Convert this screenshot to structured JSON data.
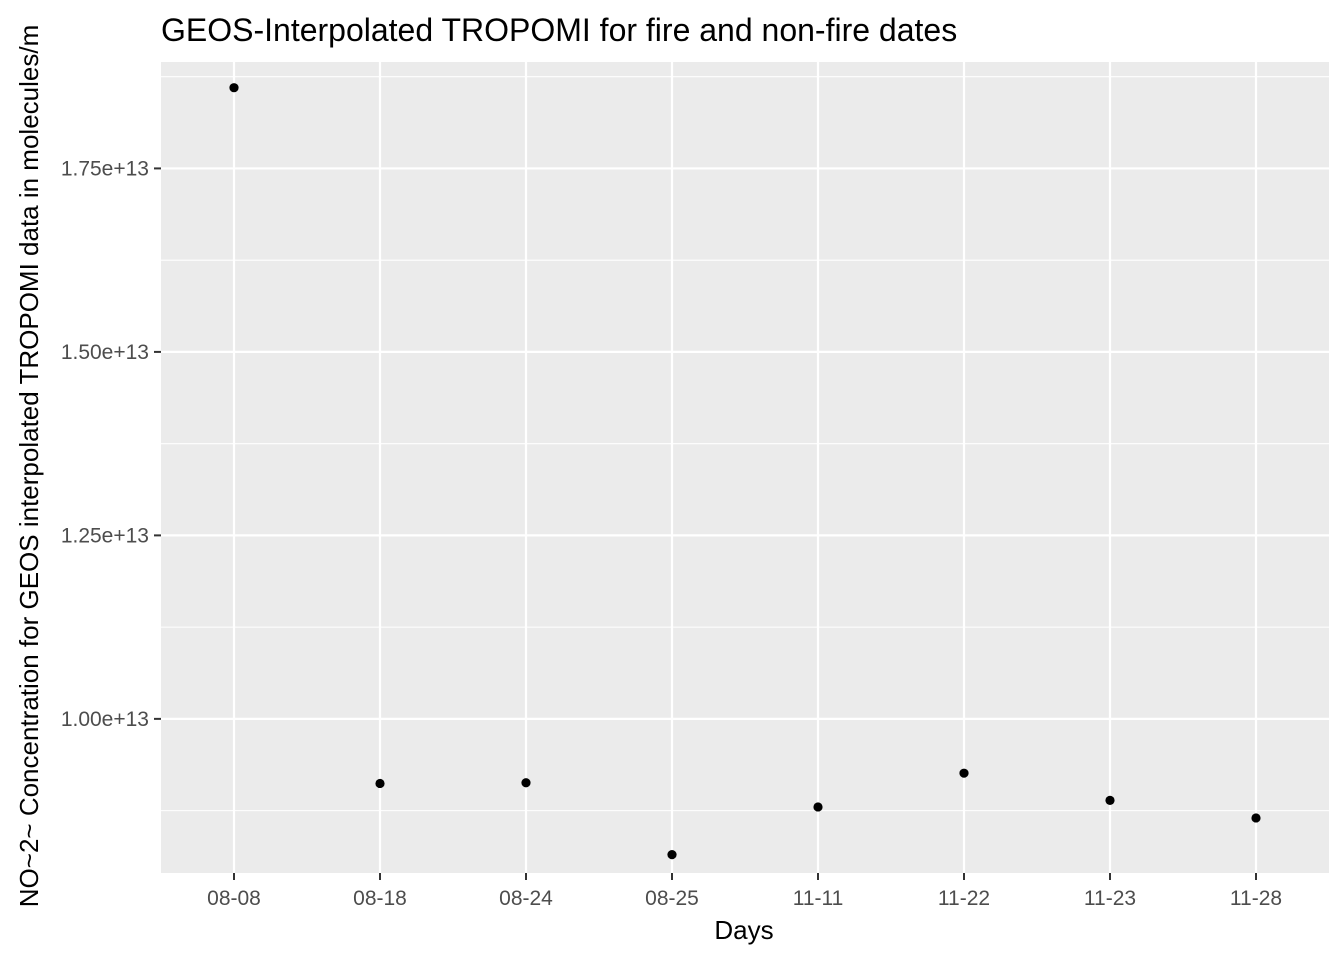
{
  "chart_data": {
    "type": "scatter",
    "title": "GEOS-Interpolated TROPOMI for fire and non-fire dates",
    "xlabel": "Days",
    "ylabel": "NO~2~ Concentration for GEOS interpolated TROPOMI data in molecules/m",
    "categories": [
      "08-08",
      "08-18",
      "08-24",
      "08-25",
      "11-11",
      "11-22",
      "11-23",
      "11-28"
    ],
    "values": [
      18600000000000.0,
      9120000000000.0,
      9130000000000.0,
      8150000000000.0,
      8800000000000.0,
      9260000000000.0,
      8890000000000.0,
      8650000000000.0
    ],
    "ylim": [
      7900000000000.0,
      18950000000000.0
    ],
    "yticks": [
      10000000000000.0,
      12500000000000.0,
      15000000000000.0,
      17500000000000.0
    ],
    "ytick_labels": [
      "1.00e+13",
      "1.25e+13",
      "1.50e+13",
      "1.75e+13"
    ],
    "grid": true,
    "colors": {
      "panel": "#ebebeb",
      "grid_major": "#ffffff",
      "point": "#000000",
      "tick": "#333333"
    }
  }
}
